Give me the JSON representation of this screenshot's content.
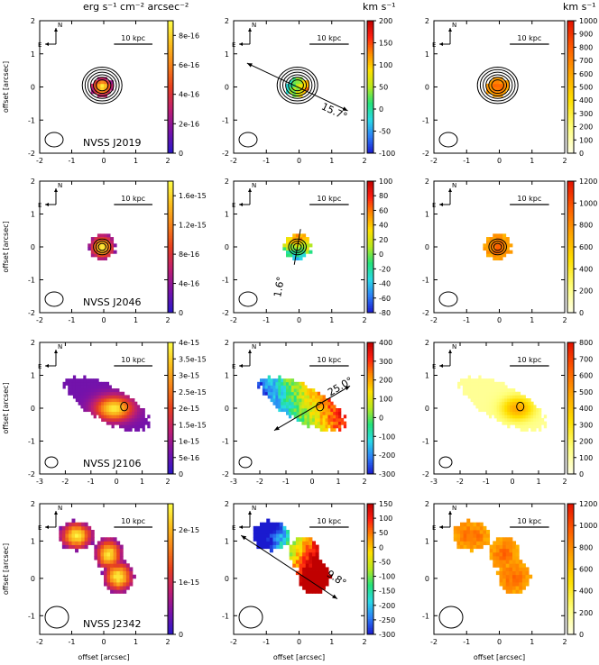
{
  "headers": {
    "flux_unit": "erg s⁻¹ cm⁻² arcsec⁻²",
    "vel_unit": "km s⁻¹",
    "sig_unit": "km s⁻¹"
  },
  "common": {
    "ylabel": "offset [arcsec]",
    "xlabel": "offset [arcsec]",
    "scale_bar_label": "10 kpc",
    "compass_north": "N",
    "compass_east": "E"
  },
  "colors": {
    "flux_cmap": [
      "#2a18c8",
      "#7a12a8",
      "#c01f70",
      "#e8401f",
      "#f7841a",
      "#fbc11e",
      "#ffff4a"
    ],
    "vel_cmap": [
      "#1a1acf",
      "#2c7ef7",
      "#29d9e6",
      "#24e27a",
      "#b8e81e",
      "#ffe000",
      "#ff8c00",
      "#ff2010",
      "#c00000"
    ],
    "sig_cmap": [
      "#ffffe8",
      "#ffff7a",
      "#ffe000",
      "#ffa500",
      "#ff5a00",
      "#e41000"
    ],
    "contour": "#000000"
  },
  "chart_data": [
    {
      "type": "heatmap",
      "object": "NVSS J2019",
      "rows": [
        {
          "panel": "flux",
          "xlim": [
            -2,
            2
          ],
          "ylim": [
            -2,
            2
          ],
          "xticks": [
            -2,
            -1,
            0,
            1,
            2
          ],
          "yticks": [
            -2,
            -1,
            0,
            1,
            2
          ],
          "colorbar": {
            "min": 0,
            "max": 9e-16,
            "ticks": [
              "0",
              "2e-16",
              "4e-16",
              "6e-16",
              "8e-16"
            ],
            "tick_values": [
              0,
              2e-16,
              4e-16,
              6e-16,
              8e-16
            ]
          }
        },
        {
          "panel": "velocity",
          "xlim": [
            -2,
            2
          ],
          "ylim": [
            -2,
            2
          ],
          "xticks": [
            -2,
            -1,
            0,
            1,
            2
          ],
          "yticks": [
            -2,
            -1,
            0,
            1,
            2
          ],
          "colorbar": {
            "min": -100,
            "max": 200,
            "ticks": [
              "-100",
              "-50",
              "0",
              "50",
              "100",
              "150",
              "200"
            ],
            "tick_values": [
              -100,
              -50,
              0,
              50,
              100,
              150,
              200
            ]
          },
          "pa_label": "15.7°"
        },
        {
          "panel": "dispersion",
          "xlim": [
            -2,
            2
          ],
          "ylim": [
            -2,
            2
          ],
          "xticks": [
            -2,
            -1,
            0,
            1,
            2
          ],
          "yticks": [
            -2,
            -1,
            0,
            1,
            2
          ],
          "colorbar": {
            "min": 0,
            "max": 1000,
            "ticks": [
              "0",
              "100",
              "200",
              "300",
              "400",
              "500",
              "600",
              "700",
              "800",
              "900",
              "1000"
            ],
            "tick_values": [
              0,
              100,
              200,
              300,
              400,
              500,
              600,
              700,
              800,
              900,
              1000
            ]
          }
        }
      ]
    },
    {
      "type": "heatmap",
      "object": "NVSS J2046",
      "rows": [
        {
          "panel": "flux",
          "xlim": [
            -2,
            2
          ],
          "ylim": [
            -2,
            2
          ],
          "xticks": [
            -2,
            -1,
            0,
            1,
            2
          ],
          "yticks": [
            -2,
            -1,
            0,
            1,
            2
          ],
          "colorbar": {
            "min": 0,
            "max": 1.8e-15,
            "ticks": [
              "0",
              "4e-16",
              "8e-16",
              "1.2e-15",
              "1.6e-15"
            ],
            "tick_values": [
              0,
              4e-16,
              8e-16,
              1.2e-15,
              1.6e-15
            ]
          }
        },
        {
          "panel": "velocity",
          "xlim": [
            -2,
            2
          ],
          "ylim": [
            -2,
            2
          ],
          "xticks": [
            -2,
            -1,
            0,
            1,
            2
          ],
          "yticks": [
            -2,
            -1,
            0,
            1,
            2
          ],
          "colorbar": {
            "min": -80,
            "max": 100,
            "ticks": [
              "-80",
              "-60",
              "-40",
              "-20",
              "0",
              "20",
              "40",
              "60",
              "80",
              "100"
            ],
            "tick_values": [
              -80,
              -60,
              -40,
              -20,
              0,
              20,
              40,
              60,
              80,
              100
            ]
          },
          "pa_label": "1.6°"
        },
        {
          "panel": "dispersion",
          "xlim": [
            -2,
            2
          ],
          "ylim": [
            -2,
            2
          ],
          "xticks": [
            -2,
            -1,
            0,
            1,
            2
          ],
          "yticks": [
            -2,
            -1,
            0,
            1,
            2
          ],
          "colorbar": {
            "min": 0,
            "max": 1200,
            "ticks": [
              "0",
              "200",
              "400",
              "600",
              "800",
              "1000",
              "1200"
            ],
            "tick_values": [
              0,
              200,
              400,
              600,
              800,
              1000,
              1200
            ]
          }
        }
      ]
    },
    {
      "type": "heatmap",
      "object": "NVSS J2106",
      "rows": [
        {
          "panel": "flux",
          "xlim": [
            -3,
            2
          ],
          "ylim": [
            -2,
            2
          ],
          "xticks": [
            -3,
            -2,
            -1,
            0,
            1,
            2
          ],
          "yticks": [
            -2,
            -1,
            0,
            1,
            2
          ],
          "colorbar": {
            "min": 0,
            "max": 4e-15,
            "ticks": [
              "0",
              "5e-16",
              "1e-15",
              "1.5e-15",
              "2e-15",
              "2.5e-15",
              "3e-15",
              "3.5e-15",
              "4e-15"
            ],
            "tick_values": [
              0,
              5e-16,
              1e-15,
              1.5e-15,
              2e-15,
              2.5e-15,
              3e-15,
              3.5e-15,
              4e-15
            ]
          }
        },
        {
          "panel": "velocity",
          "xlim": [
            -3,
            2
          ],
          "ylim": [
            -2,
            2
          ],
          "xticks": [
            -3,
            -2,
            -1,
            0,
            1,
            2
          ],
          "yticks": [
            -2,
            -1,
            0,
            1,
            2
          ],
          "colorbar": {
            "min": -300,
            "max": 400,
            "ticks": [
              "-300",
              "-200",
              "-100",
              "0",
              "100",
              "200",
              "300",
              "400"
            ],
            "tick_values": [
              -300,
              -200,
              -100,
              0,
              100,
              200,
              300,
              400
            ]
          },
          "pa_label": "25.0°"
        },
        {
          "panel": "dispersion",
          "xlim": [
            -3,
            2
          ],
          "ylim": [
            -2,
            2
          ],
          "xticks": [
            -3,
            -2,
            -1,
            0,
            1,
            2
          ],
          "yticks": [
            -2,
            -1,
            0,
            1,
            2
          ],
          "colorbar": {
            "min": 0,
            "max": 800,
            "ticks": [
              "0",
              "100",
              "200",
              "300",
              "400",
              "500",
              "600",
              "700",
              "800"
            ],
            "tick_values": [
              0,
              100,
              200,
              300,
              400,
              500,
              600,
              700,
              800
            ]
          }
        }
      ]
    },
    {
      "type": "heatmap",
      "object": "NVSS J2342",
      "rows": [
        {
          "panel": "flux",
          "xlim": [
            -2,
            2
          ],
          "ylim": [
            -1.5,
            2
          ],
          "xticks": [
            -2,
            -1,
            0,
            1,
            2
          ],
          "yticks": [
            -1,
            0,
            1,
            2
          ],
          "colorbar": {
            "min": 0,
            "max": 2.5e-15,
            "ticks": [
              "0",
              "1e-15",
              "2e-15"
            ],
            "tick_values": [
              0,
              1e-15,
              2e-15
            ]
          }
        },
        {
          "panel": "velocity",
          "xlim": [
            -2,
            2
          ],
          "ylim": [
            -1.5,
            2
          ],
          "xticks": [
            -2,
            -1,
            0,
            1,
            2
          ],
          "yticks": [
            -1,
            0,
            1,
            2
          ],
          "colorbar": {
            "min": -300,
            "max": 150,
            "ticks": [
              "-300",
              "-250",
              "-200",
              "-150",
              "-100",
              "-50",
              "0",
              "50",
              "100",
              "150"
            ],
            "tick_values": [
              -300,
              -250,
              -200,
              -150,
              -100,
              -50,
              0,
              50,
              100,
              150
            ]
          },
          "pa_label": "9.8°"
        },
        {
          "panel": "dispersion",
          "xlim": [
            -2,
            2
          ],
          "ylim": [
            -1.5,
            2
          ],
          "xticks": [
            -2,
            -1,
            0,
            1,
            2
          ],
          "yticks": [
            -1,
            0,
            1,
            2
          ],
          "colorbar": {
            "min": 0,
            "max": 1200,
            "ticks": [
              "0",
              "200",
              "400",
              "600",
              "800",
              "1000",
              "1200"
            ],
            "tick_values": [
              0,
              200,
              400,
              600,
              800,
              1000,
              1200
            ]
          }
        }
      ]
    }
  ]
}
